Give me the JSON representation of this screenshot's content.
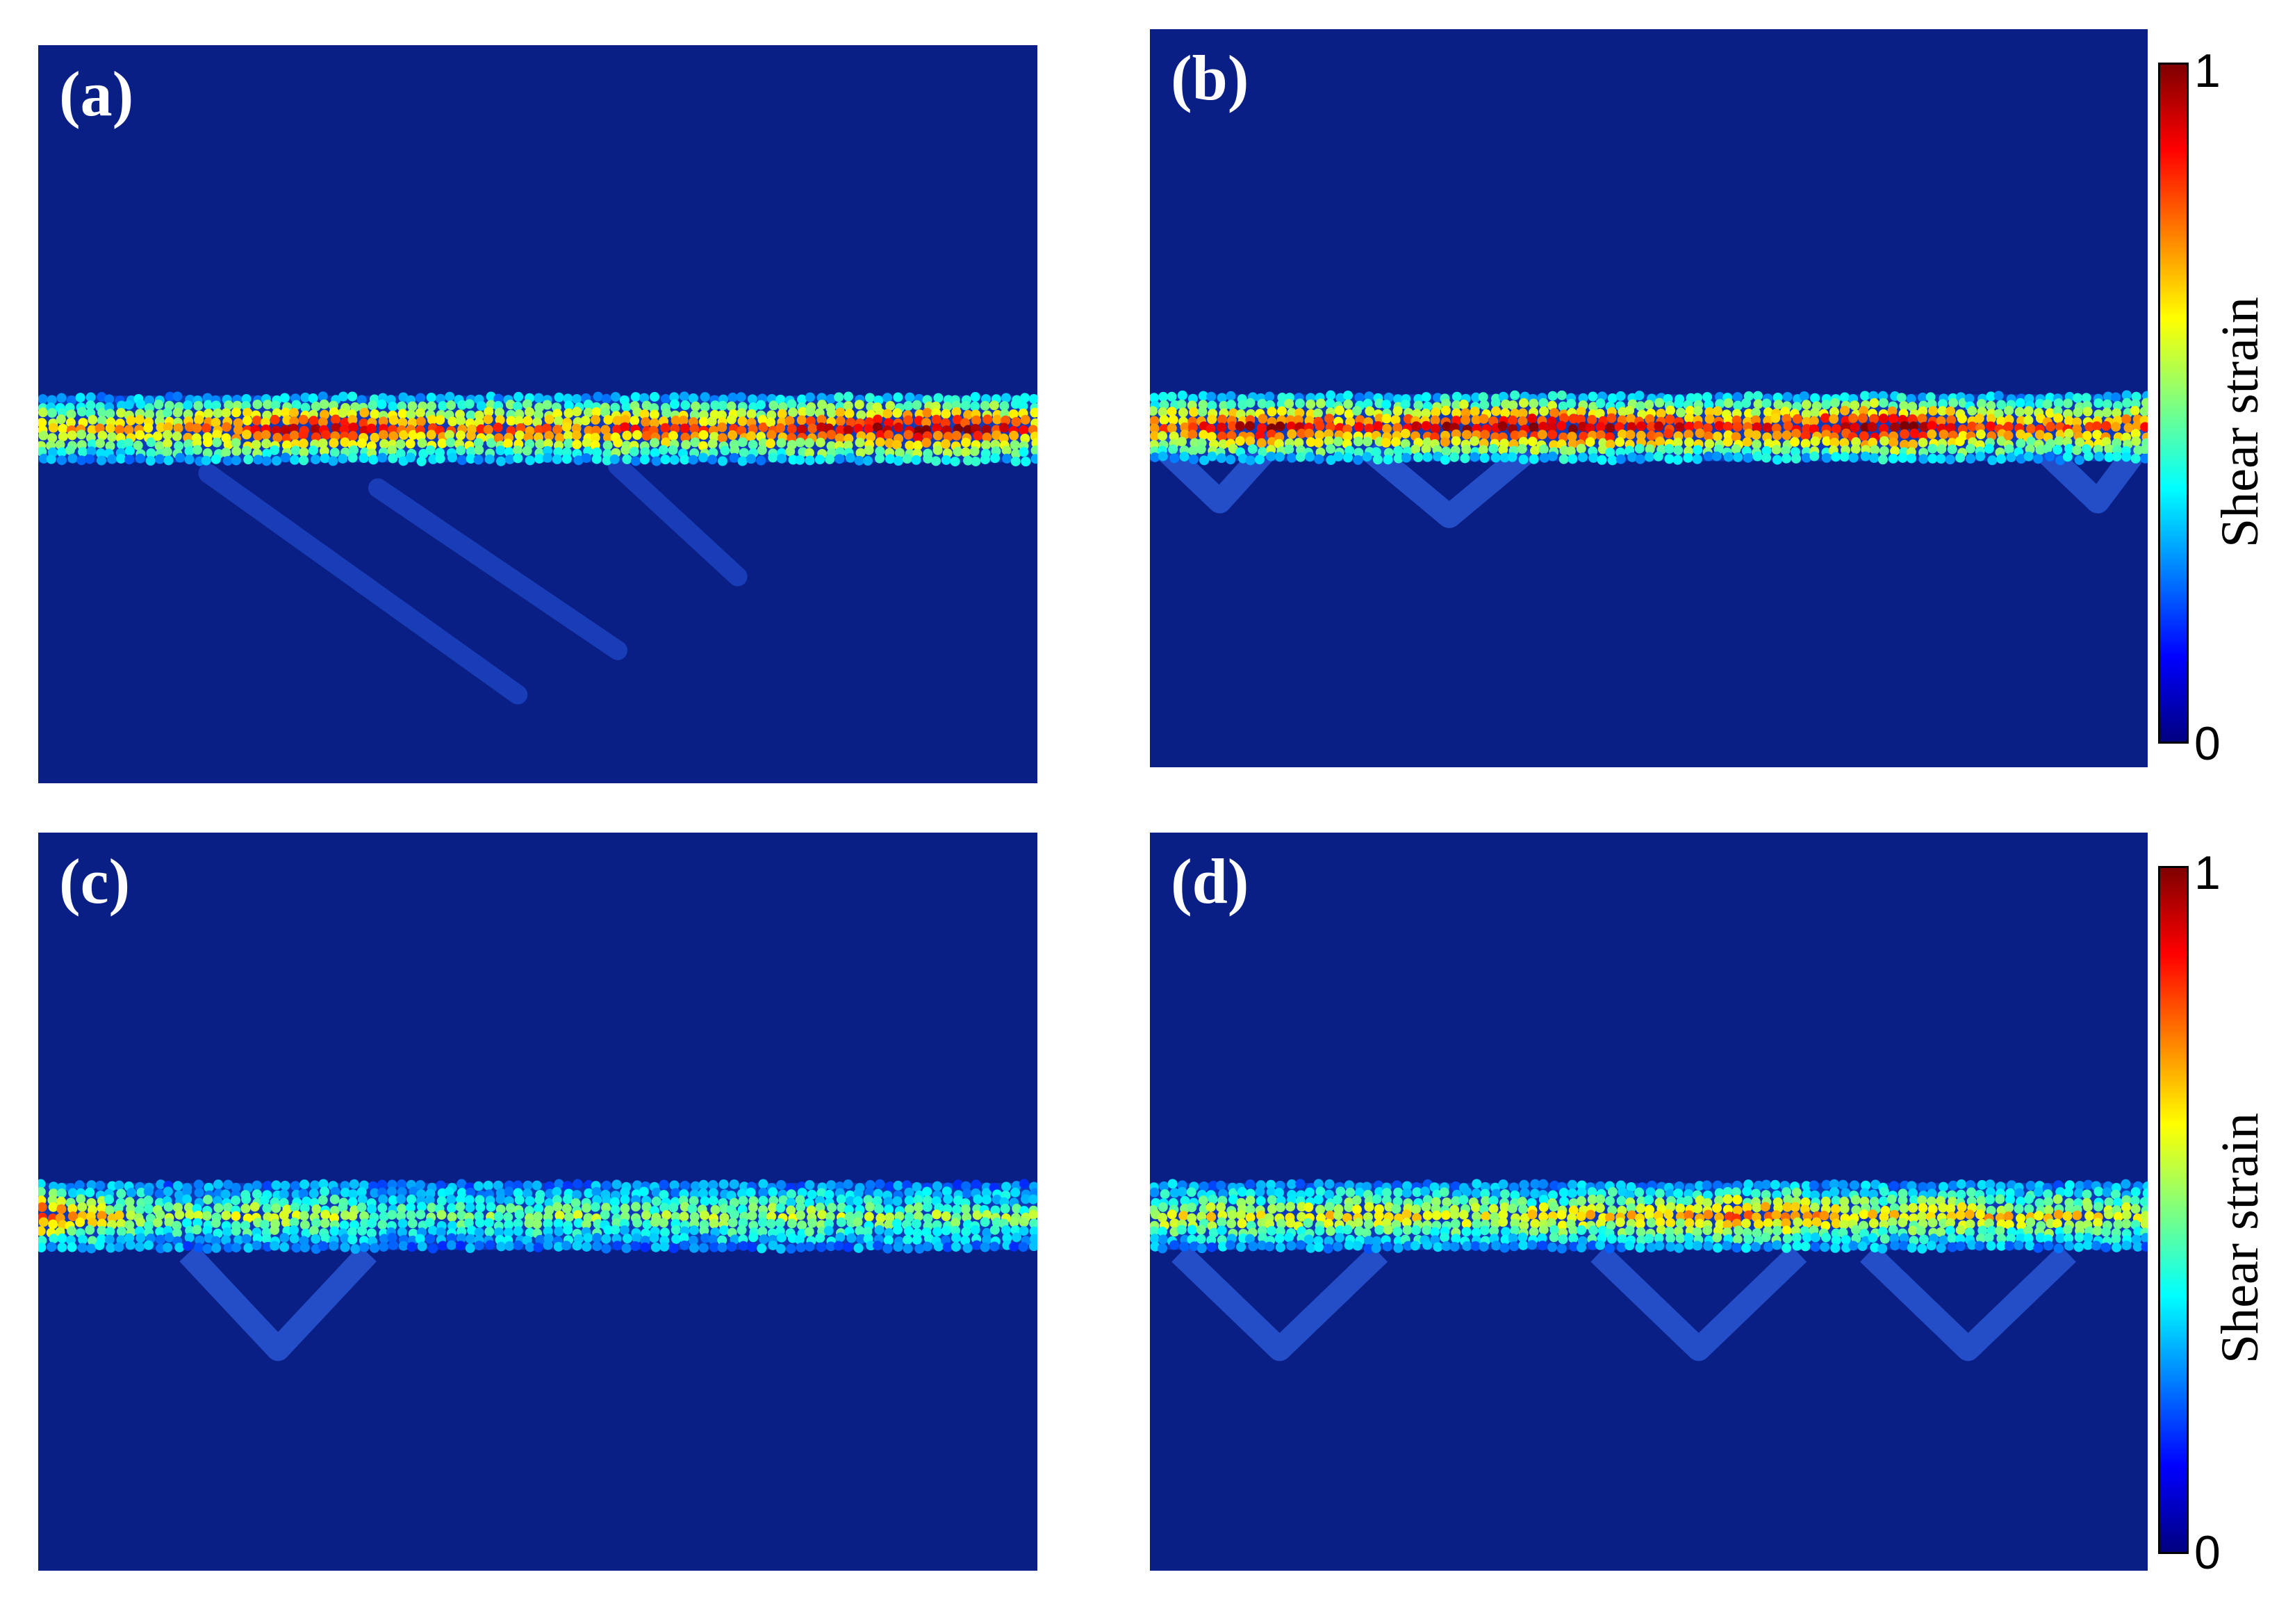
{
  "chart_data": [
    {
      "type": "heatmap",
      "panel_label": "(a)",
      "band_center_fraction": 0.52,
      "band_intensity": [
        0.62,
        0.58,
        0.66,
        0.72,
        0.85,
        0.92,
        0.78,
        0.7,
        0.74,
        0.68,
        0.8,
        0.76,
        0.7,
        0.82,
        0.88,
        0.95,
        0.9,
        0.7
      ],
      "shear_bands_below": "diagonal",
      "colorbar_shown": false
    },
    {
      "type": "heatmap",
      "panel_label": "(b)",
      "band_center_fraction": 0.54,
      "band_intensity": [
        0.72,
        0.8,
        0.92,
        0.8,
        0.75,
        0.9,
        0.95,
        0.96,
        0.88,
        0.84,
        0.8,
        0.86,
        0.94,
        0.96,
        0.78,
        0.7,
        0.76,
        0.74
      ],
      "shear_bands_below": "v-shaped",
      "colorbar_shown": true
    },
    {
      "type": "heatmap",
      "panel_label": "(c)",
      "band_center_fraction": 0.52,
      "band_intensity": [
        0.8,
        0.6,
        0.4,
        0.42,
        0.5,
        0.44,
        0.36,
        0.34,
        0.4,
        0.42,
        0.38,
        0.4,
        0.44,
        0.46,
        0.42,
        0.4,
        0.38,
        0.4
      ],
      "shear_bands_below": "v-shaped",
      "colorbar_shown": false
    },
    {
      "type": "heatmap",
      "panel_label": "(d)",
      "band_center_fraction": 0.52,
      "band_intensity": [
        0.5,
        0.52,
        0.5,
        0.54,
        0.56,
        0.55,
        0.5,
        0.56,
        0.6,
        0.58,
        0.72,
        0.7,
        0.58,
        0.55,
        0.6,
        0.54,
        0.56,
        0.5
      ],
      "shear_bands_below": "v-shaped",
      "colorbar_shown": true
    }
  ],
  "colorbar": {
    "label": "Shear strain",
    "min_label": "0",
    "max_label": "1",
    "colormap": "jet",
    "range": [
      0,
      1
    ]
  },
  "colors": {
    "background_low": "#0a1f86",
    "colormap_stops": [
      "#00007f",
      "#0000ff",
      "#007fff",
      "#00ffff",
      "#7fff7f",
      "#ffff00",
      "#ff7f00",
      "#ff0000",
      "#7f0000"
    ]
  }
}
